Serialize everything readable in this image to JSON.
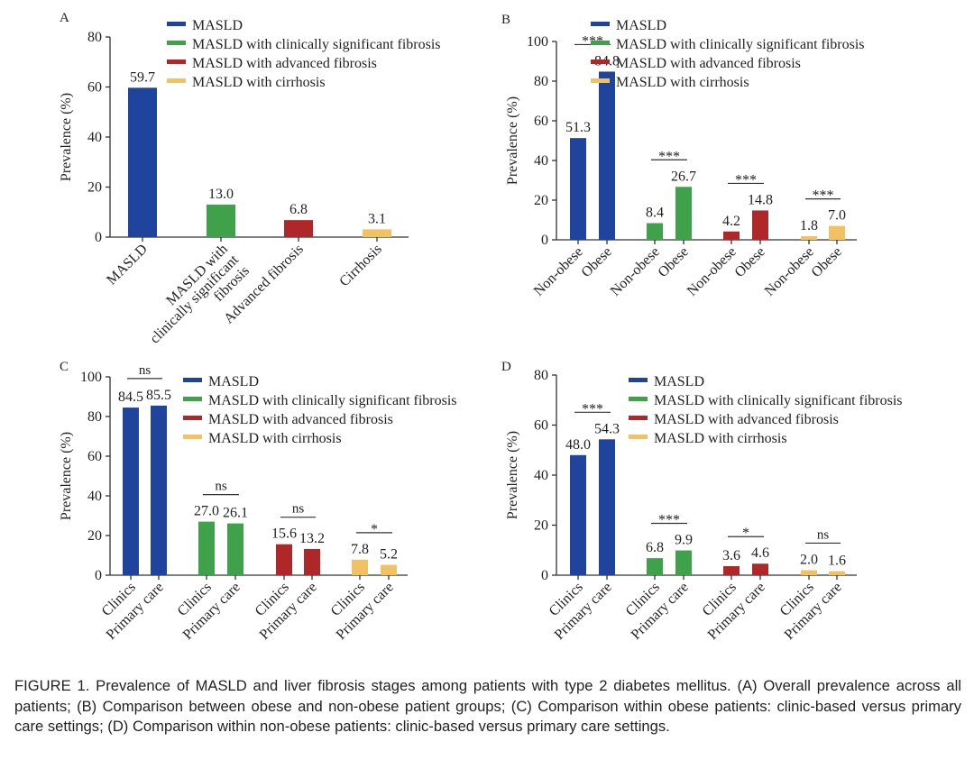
{
  "colors": {
    "MASLD": "#1f449e",
    "fibrosis": "#3fa24a",
    "advanced": "#b0272a",
    "cirrhosis": "#f1c263"
  },
  "legend": [
    "MASLD",
    "MASLD with clinically significant fibrosis",
    "MASLD with advanced fibrosis",
    "MASLD with cirrhosis"
  ],
  "chart_data": [
    {
      "panel": "A",
      "type": "bar",
      "ylabel": "Prevalence (%)",
      "ylim": [
        0,
        80
      ],
      "yticks": [
        0,
        20,
        40,
        60,
        80
      ],
      "categories": [
        "MASLD",
        "MASLD with clinically significant fibrosis",
        "Advanced fibrosis",
        "Cirrhosis"
      ],
      "values": [
        59.7,
        13.0,
        6.8,
        3.1
      ],
      "labels": [
        "59.7",
        "13.0",
        "6.8",
        "3.1"
      ],
      "groups": null
    },
    {
      "panel": "B",
      "type": "bar",
      "ylabel": "Prevalence (%)",
      "ylim": [
        0,
        100
      ],
      "yticks": [
        0,
        20,
        40,
        60,
        80,
        100
      ],
      "categories": [
        "Non-obese",
        "Obese",
        "Non-obese",
        "Obese",
        "Non-obese",
        "Obese",
        "Non-obese",
        "Obese"
      ],
      "values": [
        51.3,
        84.8,
        8.4,
        26.7,
        4.2,
        14.8,
        1.8,
        7.0
      ],
      "labels": [
        "51.3",
        "84.8",
        "8.4",
        "26.7",
        "4.2",
        "14.8",
        "1.8",
        "7.0"
      ],
      "significance": [
        "***",
        "***",
        "***",
        "***"
      ]
    },
    {
      "panel": "C",
      "type": "bar",
      "ylabel": "Prevalence (%)",
      "ylim": [
        0,
        100
      ],
      "yticks": [
        0,
        20,
        40,
        60,
        80,
        100
      ],
      "categories": [
        "Clinics",
        "Primary care",
        "Clinics",
        "Primary care",
        "Clinics",
        "Primary care",
        "Clinics",
        "Primary care"
      ],
      "values": [
        84.5,
        85.5,
        27.0,
        26.1,
        15.6,
        13.2,
        7.8,
        5.2
      ],
      "labels": [
        "84.5",
        "85.5",
        "27.0",
        "26.1",
        "15.6",
        "13.2",
        "7.8",
        "5.2"
      ],
      "significance": [
        "ns",
        "ns",
        "ns",
        "*"
      ]
    },
    {
      "panel": "D",
      "type": "bar",
      "ylabel": "Prevalence (%)",
      "ylim": [
        0,
        80
      ],
      "yticks": [
        0,
        20,
        40,
        60,
        80
      ],
      "categories": [
        "Clinics",
        "Primary care",
        "Clinics",
        "Primary care",
        "Clinics",
        "Primary care",
        "Clinics",
        "Primary care"
      ],
      "values": [
        48.0,
        54.3,
        6.8,
        9.9,
        3.6,
        4.6,
        2.0,
        1.6
      ],
      "labels": [
        "48.0",
        "54.3",
        "6.8",
        "9.9",
        "3.6",
        "4.6",
        "2.0",
        "1.6"
      ],
      "significance": [
        "***",
        "***",
        "*",
        "ns"
      ]
    }
  ],
  "caption": "FIGURE 1. Prevalence of MASLD and liver fibrosis stages among patients with type 2 diabetes mellitus. (A) Overall prevalence across all patients; (B) Comparison between obese and non-obese patient groups; (C) Comparison within obese patients: clinic-based versus primary care settings; (D) Comparison within non-obese patients: clinic-based versus primary care settings."
}
